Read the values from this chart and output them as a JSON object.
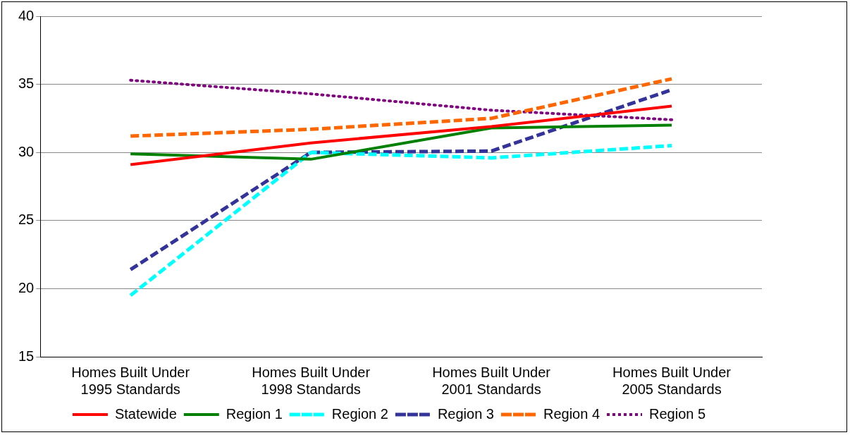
{
  "chart_data": {
    "type": "line",
    "categories": [
      "Homes Built Under 1995 Standards",
      "Homes Built Under 1998 Standards",
      "Homes Built Under 2001 Standards",
      "Homes Built Under 2005 Standards"
    ],
    "series": [
      {
        "name": "Statewide",
        "color": "#ff0000",
        "values": [
          29.1,
          30.7,
          31.9,
          33.4
        ],
        "line_style": "solid"
      },
      {
        "name": "Region 1",
        "color": "#008000",
        "values": [
          29.9,
          29.5,
          31.8,
          32.0
        ],
        "line_style": "solid"
      },
      {
        "name": "Region 2",
        "color": "#00ffff",
        "values": [
          19.5,
          30.0,
          29.6,
          30.5
        ],
        "line_style": "dashed"
      },
      {
        "name": "Region 3",
        "color": "#333399",
        "values": [
          21.4,
          30.0,
          30.1,
          34.6
        ],
        "line_style": "dashed"
      },
      {
        "name": "Region 4",
        "color": "#ff6600",
        "values": [
          31.2,
          31.7,
          32.5,
          35.4
        ],
        "line_style": "dashed"
      },
      {
        "name": "Region 5",
        "color": "#800080",
        "values": [
          35.3,
          34.3,
          33.1,
          32.4
        ],
        "line_style": "dotted"
      }
    ],
    "ylim": [
      15,
      40
    ],
    "yticks": [
      15,
      20,
      25,
      30,
      35,
      40
    ],
    "grid": "y",
    "legend": "bottom",
    "marker": "none"
  }
}
